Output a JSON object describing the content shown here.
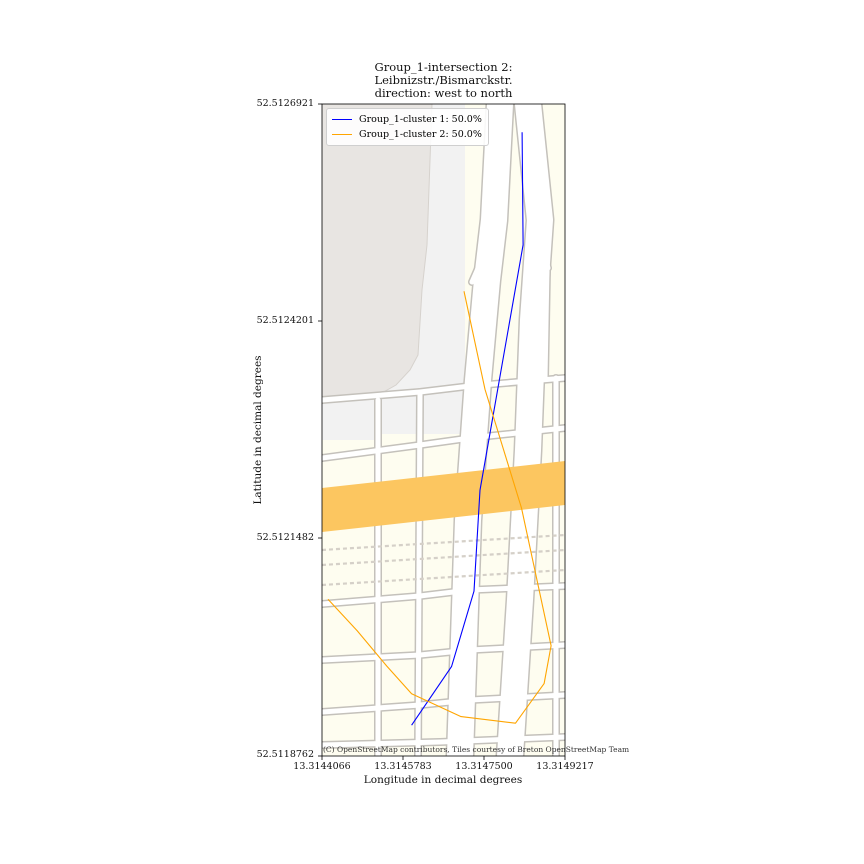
{
  "title_lines": [
    "Group_1-intersection 2:",
    "Leibnizstr./Bismarckstr.",
    "direction: west to north"
  ],
  "axes": {
    "xlabel": "Longitude in decimal degrees",
    "ylabel": "Latitude in decimal degrees",
    "xlim": [
      13.3144066,
      13.3149217
    ],
    "ylim": [
      52.5118762,
      52.5126921
    ],
    "xticks": [
      "13.3144066",
      "13.3145783",
      "13.3147500",
      "13.3149217"
    ],
    "yticks": [
      "52.5126921",
      "52.5124201",
      "52.5121482",
      "52.5118762"
    ]
  },
  "attribution": "(C) OpenStreetMap contributors, Tiles courtesy of Breton OpenStreetMap Team",
  "legend": {
    "placement": "upper-left",
    "entries": [
      {
        "label": "Group_1-cluster 1: 50.0%",
        "color": "#0000ff"
      },
      {
        "label": "Group_1-cluster 2: 50.0%",
        "color": "#ffa500"
      }
    ]
  },
  "map_colors": {
    "background": "#fefdf0",
    "building": "#e8e5e2",
    "plaza": "#f2f2f2",
    "road_casing": "#c4c1bb",
    "road_fill": "#ffffff",
    "primary_road": "#fcc660",
    "footway": "#d5d0c8"
  },
  "chart_data": {
    "type": "line",
    "title": "Group_1-intersection 2: Leibnizstr./Bismarckstr. direction: west to north",
    "xlabel": "Longitude in decimal degrees",
    "ylabel": "Latitude in decimal degrees",
    "xlim": [
      13.3144066,
      13.3149217
    ],
    "ylim": [
      52.5118762,
      52.5126921
    ],
    "series": [
      {
        "name": "Group_1-cluster 1: 50.0%",
        "color": "#0000ff",
        "points": [
          [
            13.3145966,
            52.5119147
          ],
          [
            13.3146814,
            52.5119883
          ],
          [
            13.3147289,
            52.5120826
          ],
          [
            13.3147416,
            52.5122089
          ],
          [
            13.3148328,
            52.5125158
          ],
          [
            13.3148307,
            52.5126568
          ]
        ]
      },
      {
        "name": "Group_1-cluster 2: 50.0%",
        "color": "#ffa500",
        "points": [
          [
            13.3144193,
            52.5120724
          ],
          [
            13.3144814,
            52.5120327
          ],
          [
            13.3145437,
            52.5119888
          ],
          [
            13.3145966,
            52.5119541
          ],
          [
            13.3147013,
            52.5119255
          ],
          [
            13.3148168,
            52.5119172
          ],
          [
            13.3148773,
            52.5119668
          ],
          [
            13.3148922,
            52.5120142
          ],
          [
            13.3148295,
            52.5121865
          ],
          [
            13.3147522,
            52.5123349
          ],
          [
            13.3147077,
            52.5124577
          ]
        ]
      }
    ]
  }
}
